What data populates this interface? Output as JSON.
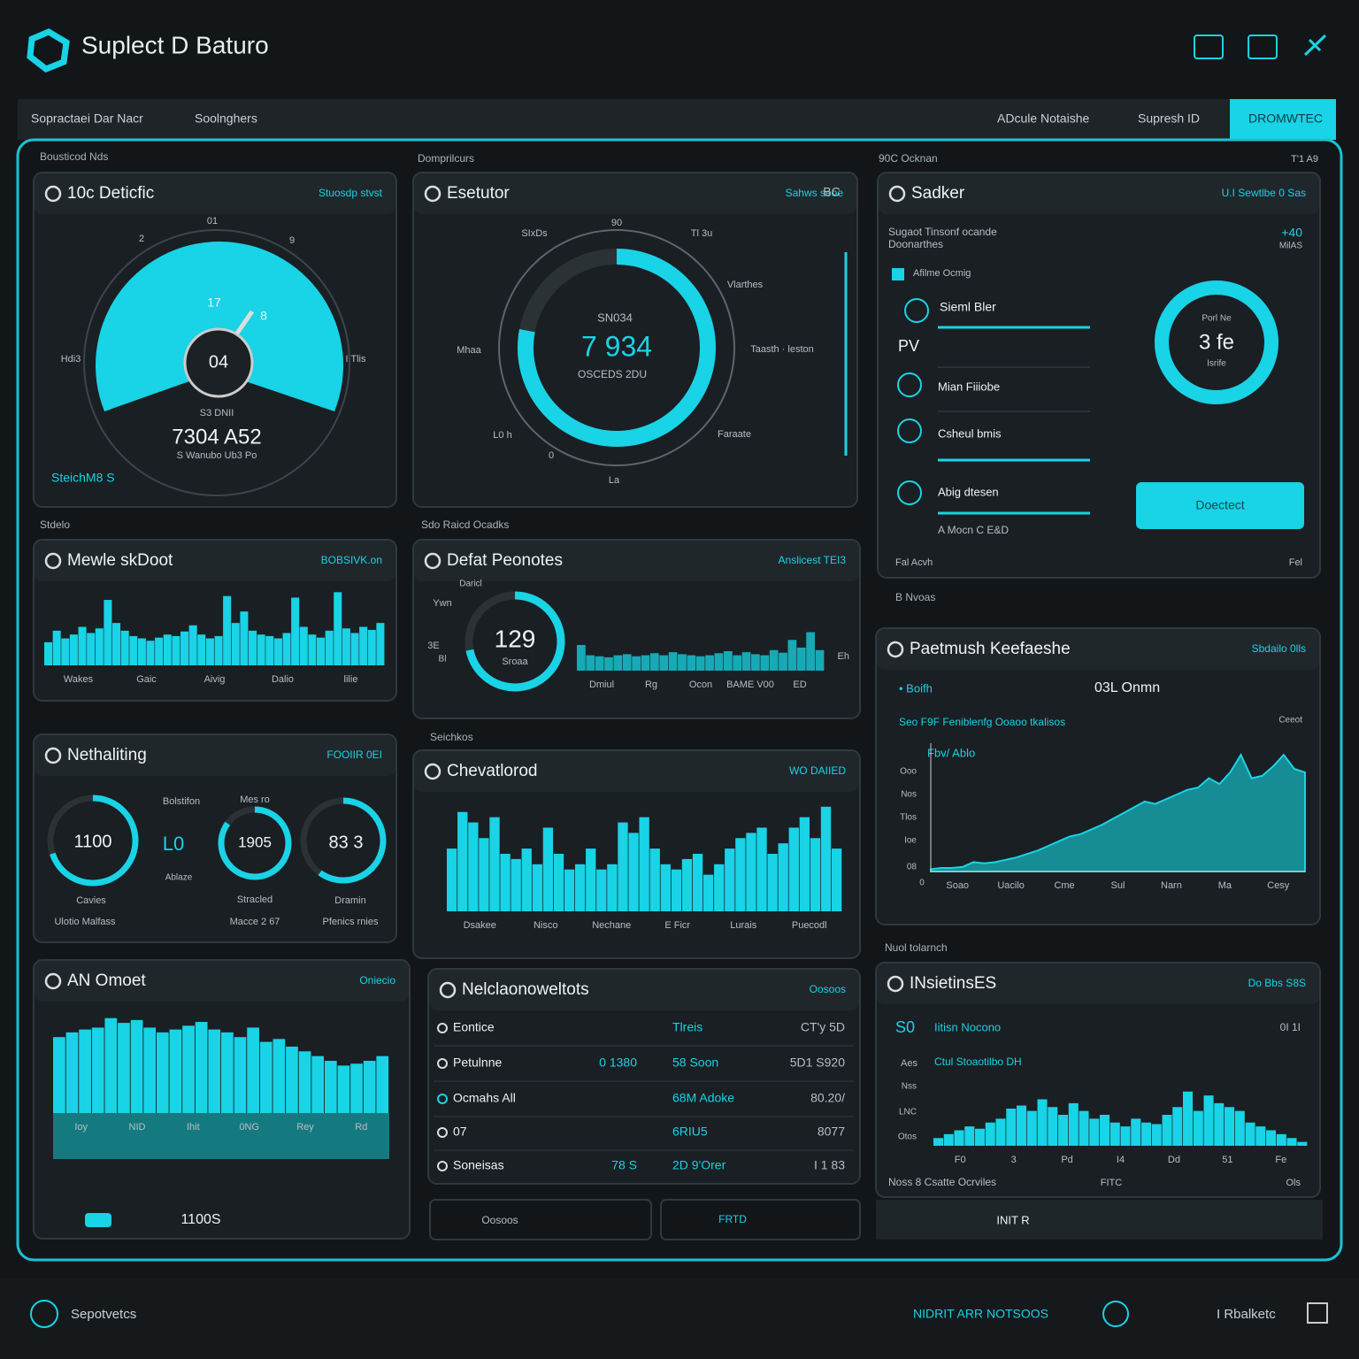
{
  "header": {
    "title": "Suplect D Baturo"
  },
  "nav": {
    "tabs": [
      "Sopractaei Dar Nacr",
      "Soolnghers",
      "ADcule Notaishe",
      "Supresh ID",
      "DROMWTEC"
    ]
  },
  "sections": [
    "Bousticod Nds",
    "Domprilcurs",
    "90C Ocknan",
    "Stdelo",
    "Sdo Raicd Ocadks",
    "B Nvoas",
    "Seichkos",
    "Nuol tolarnch"
  ],
  "panels": [
    {
      "title": "10c Deticfic",
      "tag": "Stuosdp stvst",
      "labels": [
        "04",
        "7304 A52",
        "S Wanubo Ub3 Po",
        "SteichM8 S",
        "S3 DNII",
        "17",
        "8",
        "Hdi3",
        "I Tlis",
        "01",
        "2",
        "9"
      ]
    },
    {
      "title": "Esetutor",
      "tag": "Sahws seoe",
      "labels": [
        "SN034",
        "7 934",
        "OSCEDS 2DU",
        "90",
        "Tl 3u",
        "SIxDs",
        "Vlarthes",
        "Mhaa",
        "Taasth · leston",
        "L0 h",
        "Faraate",
        "0",
        "La",
        "BC"
      ]
    },
    {
      "title": "Sadker",
      "tag": "U.I Sewtlbe 0 Sas",
      "labels": [
        "Sugaot Tinsonf ocande",
        "Doonarthes",
        "Afilme Ocmig",
        "Sieml Bler",
        "PV",
        "Mian Fiiiobe",
        "Csheul bmis",
        "Abig dtesen",
        "A Mocn C E&D",
        "3 fe",
        "Porl Ne",
        "Isrife",
        "+40",
        "MilAS",
        "Fal Acvh",
        "Fel",
        "Doectect",
        "T'1 A9"
      ]
    },
    {
      "title": "Mewle skDoot",
      "tag": "BOBSIVK.on",
      "labels": [],
      "chart": {
        "type": "bar",
        "color": "#19d3e6",
        "ylim": [
          0,
          100
        ],
        "values": [
          30,
          45,
          35,
          40,
          50,
          42,
          48,
          85,
          55,
          45,
          38,
          35,
          32,
          36,
          40,
          38,
          44,
          52,
          40,
          35,
          38,
          90,
          55,
          70,
          45,
          40,
          38,
          35,
          42,
          88,
          50,
          40,
          36,
          45,
          95,
          48,
          42,
          50,
          46,
          55
        ],
        "x_labels": [
          "Wakes",
          "Gaic",
          "Aivig",
          "Dalio",
          "lilie"
        ]
      }
    },
    {
      "title": "Defat Peonotes",
      "tag": "Anslicest TEI3",
      "labels": [
        "129",
        "Sroaa",
        "Ywn",
        "Daricl",
        "3E",
        "Eh",
        "Bl"
      ],
      "chart": {
        "type": "bar",
        "color": "#17a9b5",
        "ylim": [
          0,
          100
        ],
        "values": [
          50,
          30,
          28,
          26,
          30,
          32,
          28,
          30,
          34,
          30,
          36,
          32,
          30,
          28,
          30,
          34,
          38,
          30,
          36,
          32,
          30,
          40,
          35,
          60,
          45,
          75,
          40
        ],
        "x_labels": [
          "Dmiul",
          "Rg",
          "Ocon",
          "BAME V00",
          "ED"
        ]
      }
    },
    {
      "title": "Paetmush Keefaeshe",
      "tag": "Sbdailo 0lls",
      "labels": [
        "• Boifh",
        "03L Onmn",
        "Seo F9F Feniblenfg Ooaoo tkalisos",
        "Ceeot",
        "Fbv/ Ablo",
        "Ooo",
        "Nos",
        "Tlos",
        "Ioe",
        "08",
        "0"
      ],
      "chart": {
        "type": "area",
        "color": "#19d3e6",
        "ylim": [
          0,
          110
        ],
        "values": [
          2,
          3,
          3,
          4,
          8,
          7,
          8,
          10,
          12,
          15,
          18,
          22,
          26,
          30,
          32,
          36,
          40,
          45,
          50,
          55,
          60,
          58,
          62,
          66,
          70,
          72,
          80,
          75,
          85,
          100,
          80,
          82,
          90,
          100,
          88,
          85
        ],
        "x_labels": [
          "Soao",
          "Uacilo",
          "Cme",
          "Sul",
          "Narn",
          "Ma",
          "Cesy"
        ]
      }
    },
    {
      "title": "Nethaliting",
      "tag": "FOOIIR 0EI",
      "labels": [
        "1100",
        "L0",
        "1905",
        "83 3",
        "Bolstifon",
        "Mes ro",
        "Cavies",
        "Stracled",
        "Dramin",
        "Ulotio Malfass",
        "Macce 2 67",
        "Pfenics rnies",
        "Ablaze"
      ]
    },
    {
      "title": "Chevatlorod",
      "tag": "WO DAIIED",
      "labels": [],
      "chart": {
        "type": "bar",
        "color": "#19d3e6",
        "ylim": [
          0,
          110
        ],
        "values": [
          60,
          95,
          85,
          70,
          90,
          55,
          50,
          60,
          45,
          80,
          55,
          40,
          45,
          60,
          40,
          45,
          85,
          75,
          90,
          60,
          45,
          40,
          50,
          55,
          35,
          45,
          60,
          70,
          75,
          80,
          55,
          65,
          80,
          90,
          70,
          100,
          60
        ],
        "x_labels": [
          "Dsakee",
          "Nisco",
          "Nechane",
          "E Ficr",
          "Lurais",
          "Puecodl"
        ]
      }
    },
    {
      "title": "AN Omoet",
      "tag": "Oniecio",
      "labels": [
        "1100S"
      ],
      "chart": {
        "type": "bar",
        "color": "#19d3e6",
        "ylim": [
          0,
          110
        ],
        "values": [
          80,
          85,
          88,
          90,
          100,
          95,
          98,
          90,
          85,
          88,
          92,
          96,
          88,
          85,
          80,
          90,
          75,
          78,
          70,
          65,
          60,
          55,
          50,
          52,
          55,
          60
        ],
        "x_labels": [
          "Ioy",
          "NID",
          "Ihit",
          "0NG",
          "Rey",
          "Rd"
        ]
      }
    },
    {
      "title": "Nelclaonoweltots",
      "tag": "Oosoos",
      "labels": [
        "Oosoos",
        "FRTD"
      ],
      "rows": [
        [
          "Eontice",
          "Tlreis",
          "CT'y 5D"
        ],
        [
          "Petulnne",
          "0 1380",
          "58 Soon",
          "5D1 S920"
        ],
        [
          "Ocmahs All",
          "68M Adoke",
          "80.20/"
        ],
        [
          "07",
          "6RIU5",
          "8077"
        ],
        [
          "Soneisas",
          "78 S",
          "2D 9'Orer",
          "I 1 83"
        ]
      ]
    },
    {
      "title": "INsietinsES",
      "tag": "Do Bbs S8S",
      "labels": [
        "S0",
        "Iitisn Nocono",
        "0I 1I",
        "Aes",
        "Ctul Stoaotilbo DH",
        "Nss",
        "LNC",
        "Otos",
        "Noss 8 Csatte Ocrviles",
        "FITC",
        "Ols",
        "INIT R"
      ],
      "chart": {
        "type": "bar",
        "color": "#19d3e6",
        "ylim": [
          0,
          80
        ],
        "values": [
          10,
          15,
          20,
          25,
          22,
          30,
          35,
          48,
          52,
          45,
          60,
          50,
          40,
          55,
          45,
          35,
          40,
          30,
          25,
          35,
          30,
          28,
          40,
          50,
          70,
          45,
          65,
          55,
          50,
          45,
          30,
          25,
          20,
          15,
          10,
          5
        ],
        "x_labels": [
          "F0",
          "3",
          "Pd",
          "I4",
          "Dd",
          "51",
          "Fe"
        ]
      }
    }
  ],
  "footer": {
    "left": "Sepotvetcs",
    "middle": "NIDRIT ARR NOTSOOS",
    "right": "I Rbalketc"
  }
}
